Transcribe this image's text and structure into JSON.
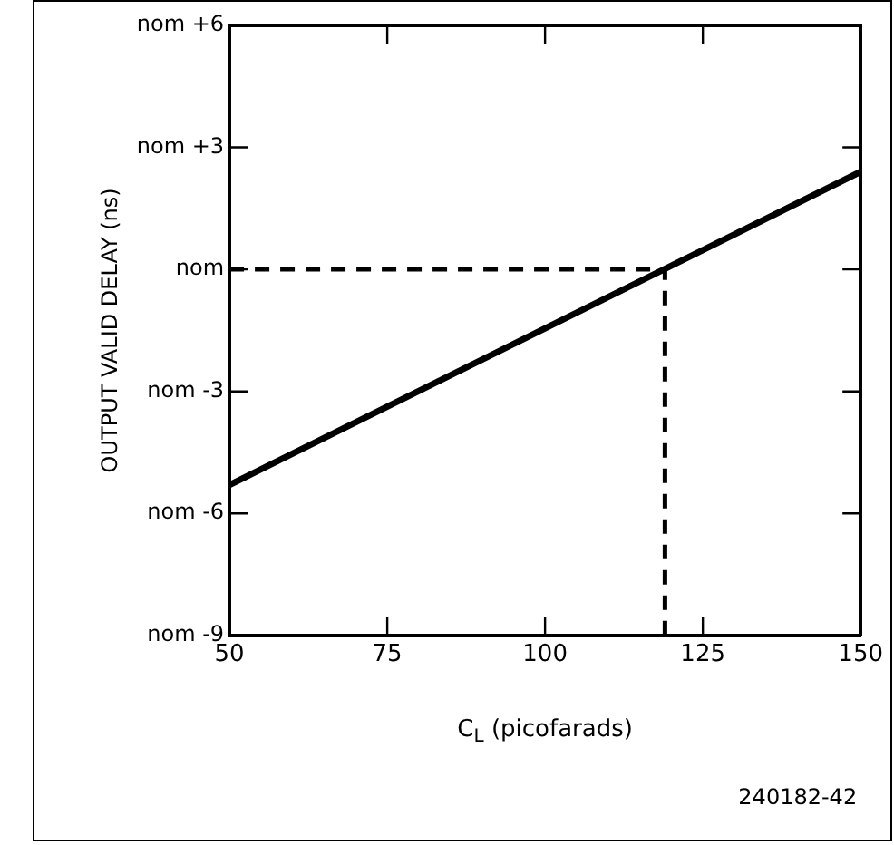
{
  "chart_data": {
    "type": "line",
    "xlabel": "C$_{L}$ (picofarads)",
    "ylabel": "OUTPUT VALID DELAY (ns)",
    "x": [
      50,
      150
    ],
    "series": [
      {
        "color": "#000000",
        "values": [
          -5.3,
          2.4
        ]
      }
    ],
    "xlim": [
      50,
      150
    ],
    "xticks": [
      50,
      75,
      100,
      125,
      150
    ],
    "ylim": [
      -9,
      6
    ],
    "yticks": [
      {
        "value": -9,
        "label": "nom -9"
      },
      {
        "value": -6,
        "label": "nom -6"
      },
      {
        "value": -3,
        "label": "nom -3"
      },
      {
        "value": 0,
        "label": "nom"
      },
      {
        "value": 3,
        "label": "nom +3"
      },
      {
        "value": 6,
        "label": "nom +6"
      }
    ],
    "ref_lines": [
      {
        "axis": "y",
        "value": 0,
        "line_style": "dashed",
        "color": "#000000"
      },
      {
        "axis": "x",
        "value": 119,
        "line_style": "dashed",
        "color": "#000000"
      }
    ],
    "annotations": [
      "240182-42"
    ],
    "grid": false,
    "legend": false,
    "marker": "none",
    "line_style": "solid"
  }
}
